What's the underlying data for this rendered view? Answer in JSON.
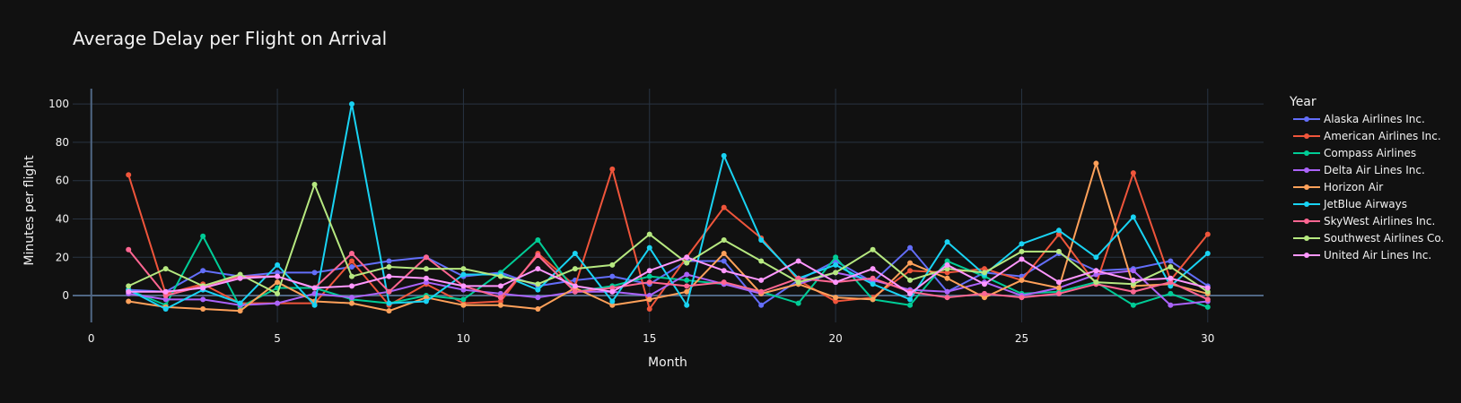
{
  "chart_data": {
    "type": "line",
    "title": "Average Delay per Flight on Arrival",
    "xlabel": "Month",
    "ylabel": "Minutes per flight",
    "legend_title": "Year",
    "legend_position": "right",
    "grid": true,
    "xlim": [
      -0.5,
      31.5
    ],
    "ylim": [
      -14,
      108
    ],
    "x_ticks": [
      0,
      5,
      10,
      15,
      20,
      25,
      30
    ],
    "y_ticks": [
      0,
      20,
      40,
      60,
      80,
      100
    ],
    "x": [
      1,
      2,
      3,
      4,
      5,
      6,
      7,
      8,
      9,
      10,
      11,
      12,
      13,
      14,
      15,
      16,
      17,
      18,
      19,
      20,
      21,
      22,
      23,
      24,
      25,
      26,
      27,
      28,
      29,
      30
    ],
    "series": [
      {
        "name": "Alaska Airlines Inc.",
        "color": "#636efa",
        "values": [
          3,
          2,
          13,
          10,
          12,
          12,
          15,
          18,
          20,
          10,
          12,
          5,
          8,
          10,
          6,
          18,
          18,
          -5,
          8,
          18,
          7,
          25,
          2,
          12,
          10,
          22,
          13,
          14,
          18,
          5
        ]
      },
      {
        "name": "American Airlines Inc.",
        "color": "#ef553b",
        "values": [
          63,
          1,
          6,
          -4,
          -4,
          -4,
          18,
          -5,
          6,
          -4,
          -3,
          22,
          5,
          66,
          -7,
          20,
          46,
          30,
          8,
          -3,
          -1,
          13,
          12,
          14,
          8,
          32,
          6,
          64,
          8,
          32
        ]
      },
      {
        "name": "Compass Airlines",
        "color": "#00cc96",
        "values": [
          3,
          -5,
          31,
          -6,
          4,
          4,
          -2,
          -4,
          0,
          -2,
          12,
          29,
          2,
          5,
          10,
          8,
          6,
          2,
          -4,
          20,
          -2,
          -5,
          18,
          10,
          1,
          2,
          7,
          -5,
          1,
          -6
        ]
      },
      {
        "name": "Delta Air Lines Inc.",
        "color": "#ab63fa",
        "values": [
          1,
          -2,
          -2,
          -5,
          -4,
          1,
          -1,
          2,
          7,
          3,
          1,
          -1,
          2,
          2,
          0,
          11,
          6,
          1,
          6,
          12,
          8,
          3,
          2,
          7,
          0,
          4,
          11,
          13,
          -5,
          -3
        ]
      },
      {
        "name": "Horizon Air",
        "color": "#ffa15a",
        "values": [
          -3,
          -6,
          -7,
          -8,
          7,
          -3,
          -4,
          -8,
          -1,
          -5,
          -5,
          -7,
          4,
          -5,
          -2,
          2,
          22,
          1,
          6,
          -1,
          -2,
          17,
          9,
          -1,
          8,
          4,
          69,
          5,
          6,
          1
        ]
      },
      {
        "name": "JetBlue Airways",
        "color": "#19d3f3",
        "values": [
          3,
          -7,
          3,
          -4,
          16,
          -5,
          100,
          -4,
          -3,
          11,
          11,
          3,
          22,
          -3,
          25,
          -5,
          73,
          29,
          9,
          16,
          6,
          -2,
          28,
          11,
          27,
          34,
          20,
          41,
          5,
          22
        ]
      },
      {
        "name": "SkyWest Airlines Inc.",
        "color": "#ff6692",
        "values": [
          24,
          0,
          5,
          10,
          10,
          4,
          22,
          2,
          20,
          5,
          -1,
          21,
          2,
          4,
          7,
          5,
          7,
          2,
          9,
          7,
          9,
          2,
          -1,
          1,
          -1,
          1,
          6,
          2,
          7,
          -2
        ]
      },
      {
        "name": "Southwest Airlines Co.",
        "color": "#b6e880",
        "values": [
          5,
          14,
          5,
          11,
          1,
          58,
          10,
          15,
          14,
          14,
          10,
          6,
          14,
          16,
          32,
          17,
          29,
          18,
          7,
          12,
          24,
          8,
          14,
          12,
          23,
          23,
          7,
          6,
          15,
          2
        ]
      },
      {
        "name": "United Air Lines Inc.",
        "color": "#ff97ff",
        "values": [
          2,
          2,
          4,
          9,
          10,
          4,
          5,
          10,
          9,
          5,
          5,
          14,
          5,
          2,
          13,
          20,
          13,
          8,
          18,
          7,
          14,
          1,
          16,
          6,
          19,
          7,
          13,
          8,
          9,
          4
        ]
      }
    ]
  }
}
